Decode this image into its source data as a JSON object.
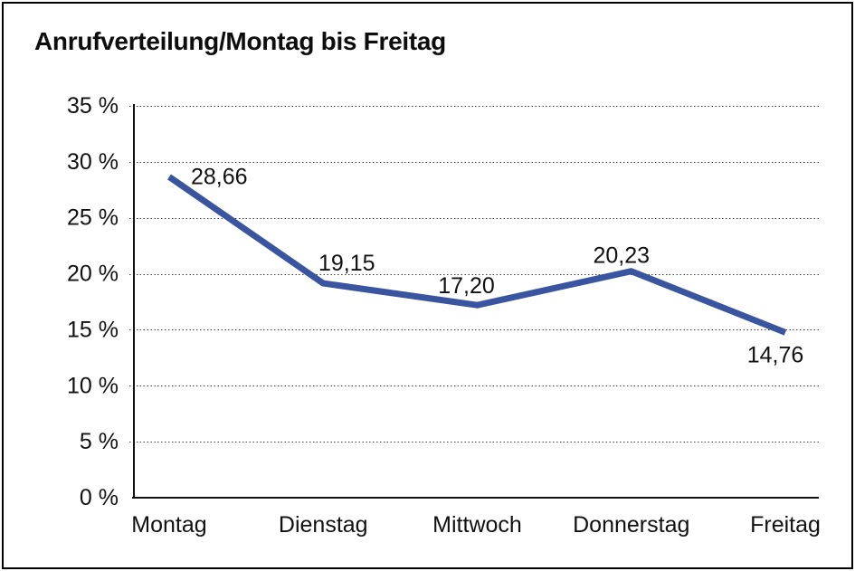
{
  "window": {
    "background_color": "#ffffff",
    "border_color": "#000000"
  },
  "title": "Anrufverteilung/Montag bis Freitag",
  "chart_data": {
    "type": "line",
    "title": "Anrufverteilung/Montag bis Freitag",
    "categories": [
      "Montag",
      "Dienstag",
      "Mittwoch",
      "Donnerstag",
      "Freitag"
    ],
    "values": [
      28.66,
      19.15,
      17.2,
      20.23,
      14.76
    ],
    "value_labels": [
      "28,66",
      "19,15",
      "17,20",
      "20,23",
      "14,76"
    ],
    "y_tick_labels": [
      "0 %",
      "5 %",
      "10 %",
      "15 %",
      "20 %",
      "25 %",
      "30 %",
      "35 %"
    ],
    "y_tick_values": [
      0,
      5,
      10,
      15,
      20,
      25,
      30,
      35
    ],
    "ylim": [
      0,
      35
    ],
    "xlabel": "",
    "ylabel": "",
    "legend": "none",
    "grid": "horizontal-dotted",
    "line_color": "#3A55A0",
    "grid_color": "#3c3c3c",
    "axis_color": "#111111",
    "text_color": "#111111"
  }
}
